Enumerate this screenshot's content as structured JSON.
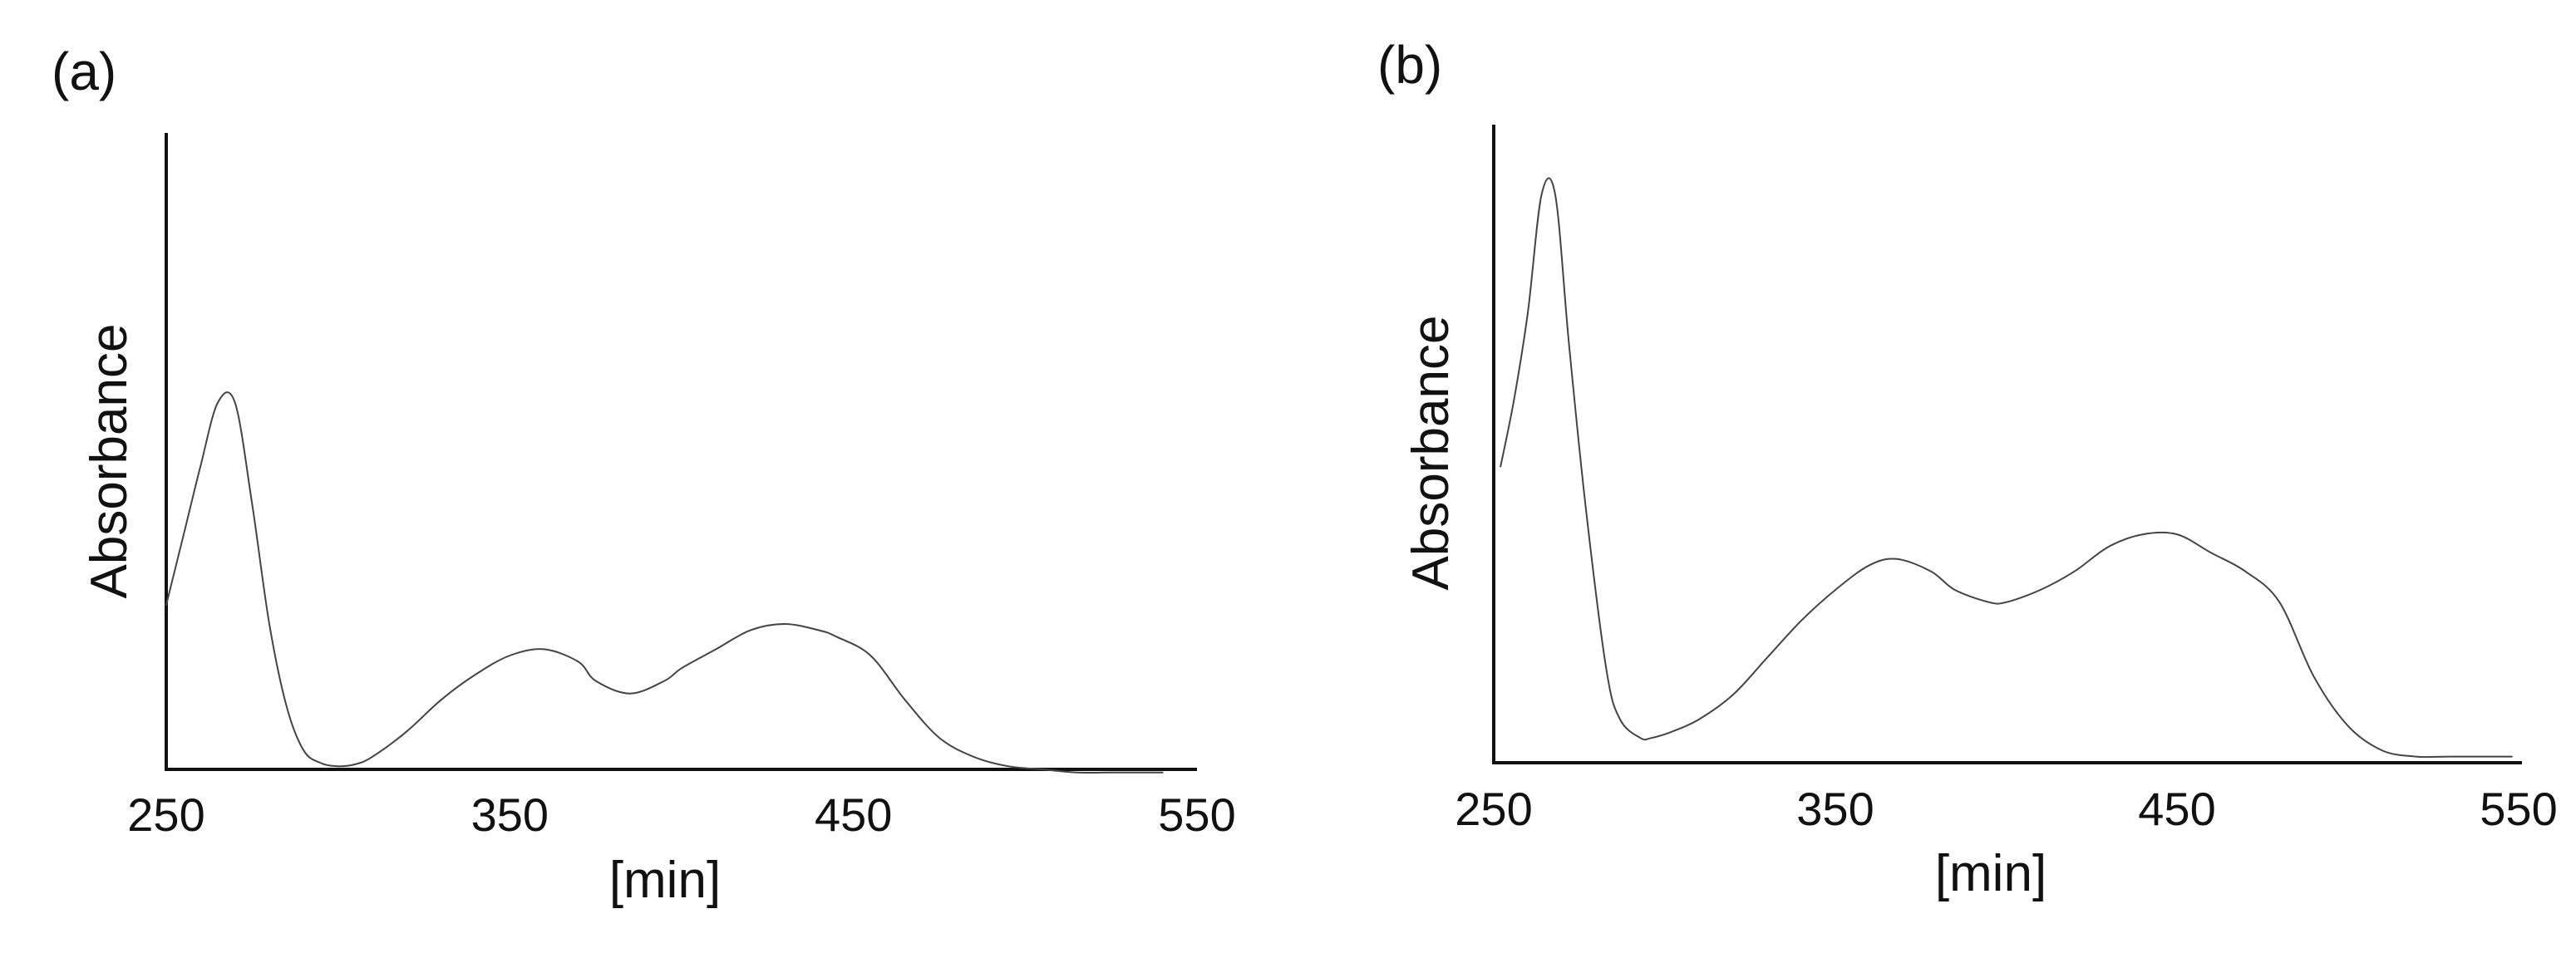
{
  "chart_data": [
    {
      "type": "line",
      "panel_label": "(a)",
      "xlabel": "[min]",
      "ylabel": "Absorbance",
      "xlim": [
        250,
        550
      ],
      "ylim": [
        0,
        1.0
      ],
      "x_ticks": [
        "250",
        "350",
        "450",
        "550"
      ],
      "y_ticks_shown": false,
      "grid": false,
      "series": [
        {
          "x": [
            250,
            255,
            260,
            265,
            270,
            275,
            280,
            285,
            290,
            295,
            300,
            305,
            310,
            320,
            330,
            340,
            350,
            360,
            370,
            375,
            385,
            395,
            400,
            410,
            420,
            430,
            440,
            445,
            455,
            465,
            475,
            485,
            495,
            505,
            515,
            525,
            540
          ],
          "y": [
            0.26,
            0.37,
            0.48,
            0.58,
            0.58,
            0.42,
            0.23,
            0.1,
            0.03,
            0.01,
            0.005,
            0.008,
            0.02,
            0.06,
            0.11,
            0.15,
            0.18,
            0.19,
            0.17,
            0.14,
            0.12,
            0.14,
            0.16,
            0.19,
            0.22,
            0.23,
            0.22,
            0.21,
            0.18,
            0.11,
            0.05,
            0.02,
            0.005,
            0.0,
            -0.005,
            -0.005,
            -0.005
          ]
        }
      ]
    },
    {
      "type": "line",
      "panel_label": "(b)",
      "xlabel": "[min]",
      "ylabel": "Absorbance",
      "xlim": [
        250,
        550
      ],
      "ylim": [
        0,
        1.0
      ],
      "x_ticks": [
        "250",
        "350",
        "450",
        "550"
      ],
      "y_ticks_shown": false,
      "grid": false,
      "series": [
        {
          "x": [
            252,
            256,
            260,
            264,
            268,
            272,
            277,
            283,
            287,
            293,
            296,
            302,
            310,
            320,
            330,
            340,
            350,
            360,
            368,
            378,
            385,
            395,
            400,
            410,
            420,
            430,
            440,
            450,
            460,
            470,
            480,
            490,
            500,
            510,
            520,
            530,
            548
          ],
          "y": [
            0.48,
            0.59,
            0.73,
            0.92,
            0.92,
            0.68,
            0.41,
            0.15,
            0.07,
            0.04,
            0.04,
            0.05,
            0.07,
            0.11,
            0.17,
            0.23,
            0.28,
            0.32,
            0.33,
            0.31,
            0.28,
            0.26,
            0.26,
            0.28,
            0.31,
            0.35,
            0.37,
            0.37,
            0.34,
            0.31,
            0.26,
            0.14,
            0.06,
            0.02,
            0.01,
            0.01,
            0.01
          ]
        }
      ]
    }
  ]
}
